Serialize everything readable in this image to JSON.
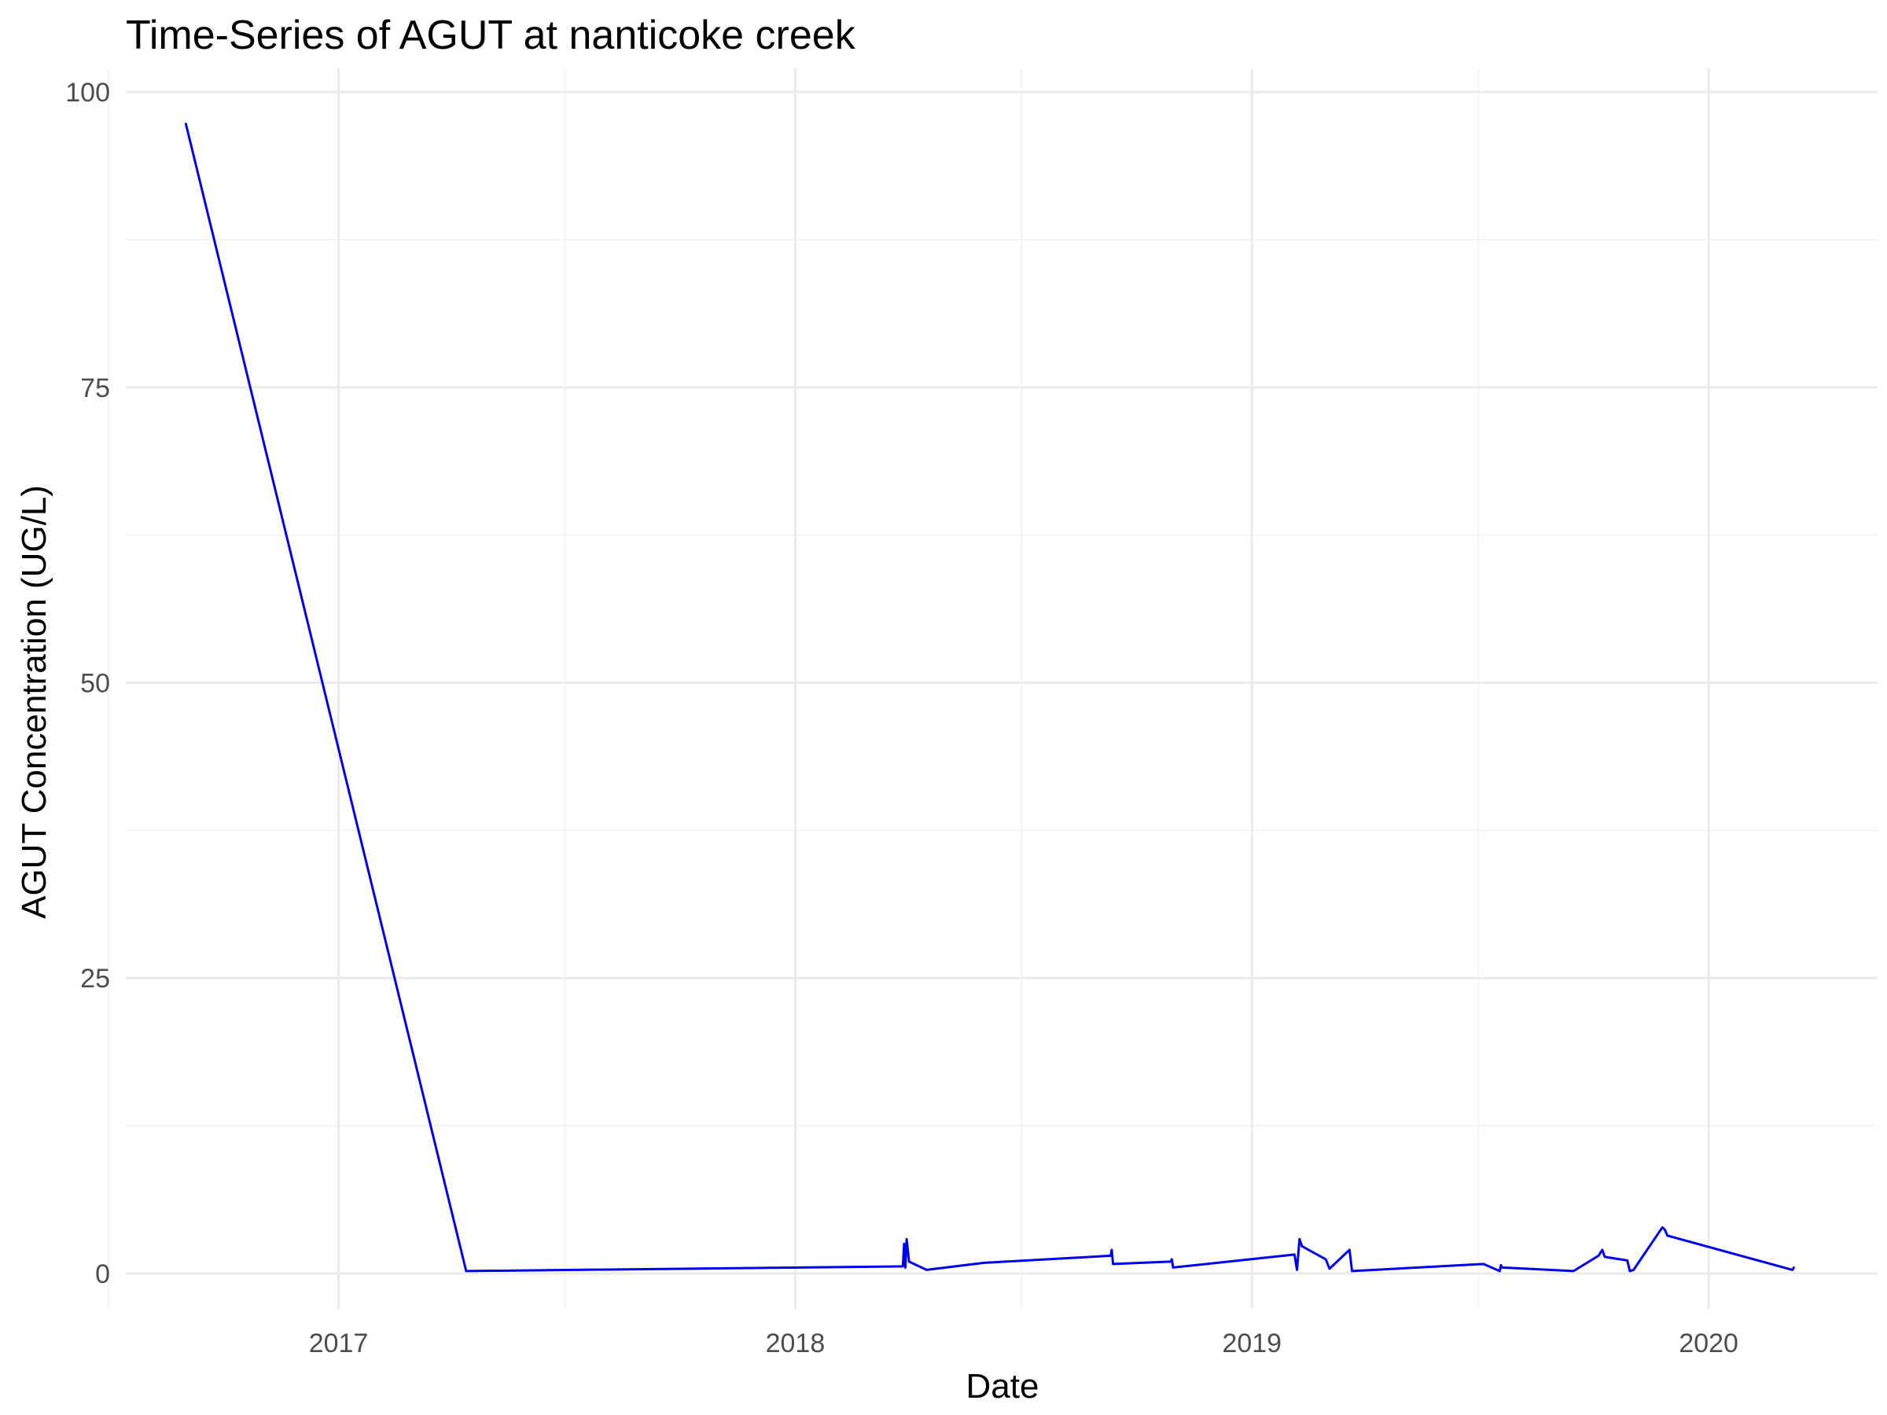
{
  "chart_data": {
    "type": "line",
    "title": "Time-Series of AGUT at nanticoke creek",
    "xlabel": "Date",
    "ylabel": "AGUT Concentration (UG/L)",
    "xlim": [
      "2016-07-15",
      "2020-05-15"
    ],
    "ylim": [
      -3,
      102
    ],
    "x_ticks": [
      {
        "date": "2017-01-01",
        "label": "2017"
      },
      {
        "date": "2018-01-01",
        "label": "2018"
      },
      {
        "date": "2019-01-01",
        "label": "2019"
      },
      {
        "date": "2020-01-01",
        "label": "2020"
      }
    ],
    "x_minor_ticks": [
      "2016-07-01",
      "2017-07-01",
      "2018-07-01",
      "2019-07-01"
    ],
    "y_ticks": [
      0,
      25,
      50,
      75,
      100
    ],
    "y_minor_ticks": [
      12.5,
      37.5,
      62.5,
      87.5
    ],
    "grid": true,
    "legend": "none",
    "series": [
      {
        "color": "#0000ee",
        "points": [
          {
            "x": "2016-09-01",
            "y": 97.3
          },
          {
            "x": "2017-04-13",
            "y": 0.2
          },
          {
            "x": "2018-03-28",
            "y": 0.6
          },
          {
            "x": "2018-03-29",
            "y": 2.5
          },
          {
            "x": "2018-03-30",
            "y": 0.5
          },
          {
            "x": "2018-03-31",
            "y": 2.9
          },
          {
            "x": "2018-04-02",
            "y": 1.0
          },
          {
            "x": "2018-04-16",
            "y": 0.3
          },
          {
            "x": "2018-06-01",
            "y": 0.9
          },
          {
            "x": "2018-09-10",
            "y": 1.5
          },
          {
            "x": "2018-09-11",
            "y": 2.0
          },
          {
            "x": "2018-09-12",
            "y": 0.8
          },
          {
            "x": "2018-10-28",
            "y": 1.0
          },
          {
            "x": "2018-10-29",
            "y": 1.2
          },
          {
            "x": "2018-10-30",
            "y": 0.5
          },
          {
            "x": "2019-02-04",
            "y": 1.6
          },
          {
            "x": "2019-02-06",
            "y": 0.3
          },
          {
            "x": "2019-02-08",
            "y": 2.9
          },
          {
            "x": "2019-02-10",
            "y": 2.3
          },
          {
            "x": "2019-03-01",
            "y": 1.2
          },
          {
            "x": "2019-03-04",
            "y": 0.4
          },
          {
            "x": "2019-03-20",
            "y": 2.0
          },
          {
            "x": "2019-03-22",
            "y": 0.2
          },
          {
            "x": "2019-07-05",
            "y": 0.8
          },
          {
            "x": "2019-07-18",
            "y": 0.2
          },
          {
            "x": "2019-07-19",
            "y": 0.7
          },
          {
            "x": "2019-07-20",
            "y": 0.5
          },
          {
            "x": "2019-09-15",
            "y": 0.2
          },
          {
            "x": "2019-10-05",
            "y": 1.5
          },
          {
            "x": "2019-10-08",
            "y": 2.0
          },
          {
            "x": "2019-10-10",
            "y": 1.4
          },
          {
            "x": "2019-10-28",
            "y": 1.1
          },
          {
            "x": "2019-10-30",
            "y": 0.2
          },
          {
            "x": "2019-11-02",
            "y": 0.3
          },
          {
            "x": "2019-11-25",
            "y": 3.9
          },
          {
            "x": "2019-11-27",
            "y": 3.7
          },
          {
            "x": "2019-11-29",
            "y": 3.2
          },
          {
            "x": "2020-03-08",
            "y": 0.3
          },
          {
            "x": "2020-03-09",
            "y": 0.5
          }
        ]
      }
    ]
  }
}
